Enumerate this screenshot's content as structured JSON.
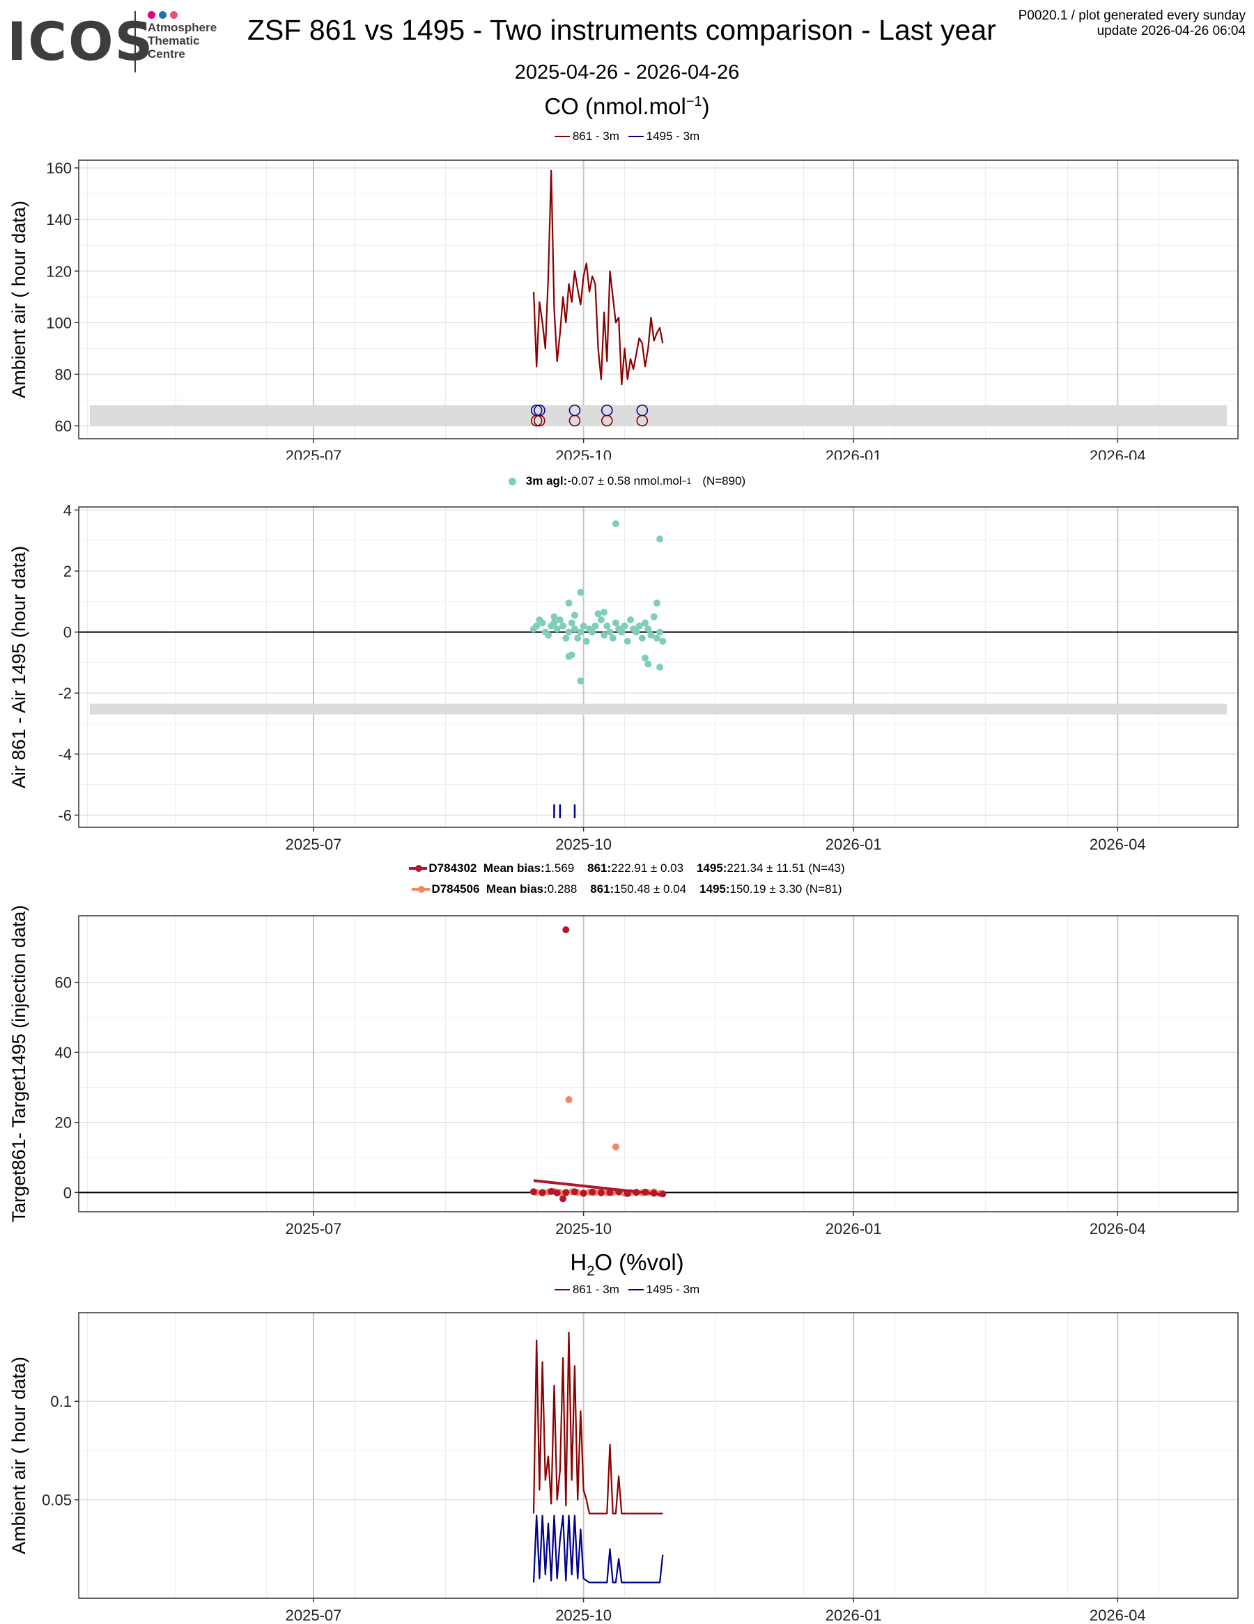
{
  "header": {
    "logo_text": "ICOS",
    "logo_sub": [
      "Atmosphere",
      "Thematic",
      "Centre"
    ],
    "logo_dot_colors": [
      "#e6007e",
      "#1d71b8",
      "#e94f7c"
    ],
    "title": "ZSF 861 vs 1495 - Two instruments comparison - Last year",
    "corner_line1": "P0020.1 / plot generated every sunday",
    "corner_line2": "update  2026-04-26 06:04",
    "date_range": "2025-04-26 - 2026-04-26"
  },
  "sections": {
    "co_title": "CO (nmol.mol",
    "co_title_sup": "−1",
    "co_title_end": ")",
    "h2o_title_a": "H",
    "h2o_title_sub": "2",
    "h2o_title_b": "O (%vol)"
  },
  "legends": {
    "co_series": [
      {
        "label": "861 - 3m",
        "color": "#8b0000"
      },
      {
        "label": "1495 - 3m",
        "color": "#00008b"
      }
    ],
    "diff": {
      "bold": "3m agl:",
      "text": " -0.07 ± 0.58 nmol.mol",
      "sup": "−1",
      "n": "(N=890)",
      "color": "#7fcdbb"
    },
    "targets": [
      {
        "name": "D784302",
        "mb_label": "Mean bias:",
        "mb": " 1.569",
        "a_label": "861:",
        "a": " 222.91 ± 0.03",
        "b_label": "1495:",
        "b": " 221.34 ± 11.51 (N=43)",
        "color": "#b2182b"
      },
      {
        "name": "D784506",
        "mb_label": "Mean bias:",
        "mb": " 0.288",
        "a_label": "861:",
        "a": " 150.48 ± 0.04",
        "b_label": "1495:",
        "b": " 150.19 ± 3.30 (N=81)",
        "color": "#ef8a62"
      }
    ],
    "h2o_series": [
      {
        "label": "861 - 3m",
        "color": "#8b0000"
      },
      {
        "label": "1495 - 3m",
        "color": "#00008b"
      }
    ]
  },
  "x_axis": {
    "domain": [
      "2025-04-12",
      "2026-05-12"
    ],
    "ticks": [
      "2025-07",
      "2025-10",
      "2026-01",
      "2026-04"
    ],
    "tick_dates": [
      "2025-07-01",
      "2025-10-01",
      "2026-01-01",
      "2026-04-01"
    ]
  },
  "chart_data": [
    {
      "type": "line",
      "title": "CO (nmol.mol−1)",
      "ylabel": "Ambient air ( hour data)",
      "ylim": [
        55,
        163
      ],
      "yticks": [
        60,
        80,
        100,
        120,
        140,
        160
      ],
      "band": [
        60,
        68
      ],
      "series": [
        {
          "name": "861 - 3m",
          "color": "#8b0000",
          "x": [
            "2025-09-14",
            "2025-09-15",
            "2025-09-16",
            "2025-09-17",
            "2025-09-18",
            "2025-09-19",
            "2025-09-20",
            "2025-09-21",
            "2025-09-22",
            "2025-09-23",
            "2025-09-24",
            "2025-09-25",
            "2025-09-26",
            "2025-09-27",
            "2025-09-28",
            "2025-09-29",
            "2025-09-30",
            "2025-10-01",
            "2025-10-02",
            "2025-10-03",
            "2025-10-04",
            "2025-10-05",
            "2025-10-06",
            "2025-10-07",
            "2025-10-08",
            "2025-10-09",
            "2025-10-10",
            "2025-10-11",
            "2025-10-12",
            "2025-10-13",
            "2025-10-14",
            "2025-10-15",
            "2025-10-16",
            "2025-10-17",
            "2025-10-18",
            "2025-10-19",
            "2025-10-20",
            "2025-10-21",
            "2025-10-22",
            "2025-10-23",
            "2025-10-24",
            "2025-10-25",
            "2025-10-26",
            "2025-10-27",
            "2025-10-28"
          ],
          "values": [
            112,
            83,
            108,
            100,
            90,
            118,
            159,
            105,
            85,
            96,
            110,
            100,
            115,
            108,
            120,
            113,
            107,
            118,
            123,
            112,
            118,
            115,
            90,
            78,
            104,
            85,
            120,
            110,
            100,
            102,
            76,
            90,
            78,
            86,
            82,
            88,
            94,
            92,
            83,
            90,
            102,
            93,
            96,
            98,
            92
          ]
        },
        {
          "name": "1495 - 3m",
          "color": "#00008b",
          "values": []
        }
      ],
      "markers": {
        "861": {
          "color": "#8b0000",
          "y": 62,
          "x": [
            "2025-09-15",
            "2025-09-16",
            "2025-09-28",
            "2025-10-09",
            "2025-10-21"
          ]
        },
        "1495": {
          "color": "#00008b",
          "y": 66,
          "x": [
            "2025-09-15",
            "2025-09-16",
            "2025-09-28",
            "2025-10-09",
            "2025-10-21"
          ]
        }
      }
    },
    {
      "type": "scatter",
      "ylabel": "Air 861 - Air 1495 (hour data)",
      "ylim": [
        -6.4,
        4.1
      ],
      "yticks": [
        -6,
        -4,
        -2,
        0,
        2,
        4
      ],
      "band": [
        -2.7,
        -2.35
      ],
      "series": [
        {
          "name": "3m agl",
          "color": "#7fcdbb",
          "x": [
            "2025-09-14",
            "2025-09-15",
            "2025-09-16",
            "2025-09-17",
            "2025-09-18",
            "2025-09-19",
            "2025-09-20",
            "2025-09-21",
            "2025-09-22",
            "2025-09-23",
            "2025-09-24",
            "2025-09-25",
            "2025-09-26",
            "2025-09-27",
            "2025-09-28",
            "2025-09-29",
            "2025-09-30",
            "2025-10-01",
            "2025-10-02",
            "2025-10-03",
            "2025-10-04",
            "2025-10-05",
            "2025-10-06",
            "2025-10-07",
            "2025-10-08",
            "2025-10-09",
            "2025-10-10",
            "2025-10-11",
            "2025-10-12",
            "2025-10-13",
            "2025-10-14",
            "2025-10-15",
            "2025-10-16",
            "2025-10-17",
            "2025-10-18",
            "2025-10-19",
            "2025-10-20",
            "2025-10-21",
            "2025-10-22",
            "2025-10-23",
            "2025-10-24",
            "2025-10-25",
            "2025-10-26",
            "2025-10-27",
            "2025-10-28",
            "2025-10-12",
            "2025-10-27",
            "2025-09-30",
            "2025-09-26",
            "2025-09-28",
            "2025-09-27",
            "2025-09-30",
            "2025-09-26",
            "2025-10-27",
            "2025-10-22",
            "2025-10-23",
            "2025-10-08",
            "2025-10-26",
            "2025-09-21",
            "2025-09-24"
          ],
          "values": [
            0.1,
            0.2,
            0.4,
            0.3,
            0.0,
            -0.1,
            0.2,
            0.3,
            0.1,
            0.4,
            0.2,
            -0.2,
            0.0,
            0.3,
            0.1,
            -0.2,
            0.0,
            0.2,
            -0.3,
            0.1,
            0.0,
            0.2,
            0.6,
            0.4,
            -0.1,
            0.2,
            0.0,
            -0.2,
            0.3,
            0.1,
            0.0,
            0.2,
            -0.3,
            0.4,
            0.1,
            0.0,
            0.2,
            -0.2,
            0.3,
            0.1,
            -0.1,
            0.5,
            -0.2,
            0.0,
            -0.3,
            3.55,
            3.05,
            1.3,
            0.95,
            0.55,
            -0.75,
            -1.6,
            -0.8,
            -1.15,
            -0.85,
            -1.05,
            0.65,
            0.95,
            0.5,
            0.2
          ]
        }
      ],
      "flags": {
        "color": "#00008b",
        "x": [
          "2025-09-21",
          "2025-09-23",
          "2025-09-28"
        ]
      }
    },
    {
      "type": "scatter",
      "ylabel": "Target861- Target1495 (injection data)",
      "ylim": [
        -5.5,
        79
      ],
      "yticks": [
        0,
        20,
        40,
        60
      ],
      "series": [
        {
          "name": "D784302",
          "color": "#b2182b",
          "x": [
            "2025-09-14",
            "2025-09-17",
            "2025-09-20",
            "2025-09-22",
            "2025-09-25",
            "2025-09-28",
            "2025-10-01",
            "2025-10-04",
            "2025-10-07",
            "2025-10-10",
            "2025-10-13",
            "2025-10-16",
            "2025-10-19",
            "2025-10-22",
            "2025-10-25",
            "2025-10-28",
            "2025-09-25",
            "2025-09-24"
          ],
          "values": [
            0.2,
            0.0,
            0.3,
            -0.1,
            0.0,
            0.2,
            -0.2,
            0.1,
            -0.1,
            0.0,
            0.2,
            -0.3,
            0.0,
            0.1,
            -0.2,
            -0.4,
            75.0,
            -1.8
          ],
          "trend": {
            "x": [
              "2025-09-14",
              "2025-10-28"
            ],
            "y": [
              3.4,
              -0.6
            ]
          }
        },
        {
          "name": "D784506",
          "color": "#ef8a62",
          "x": [
            "2025-09-15",
            "2025-09-17",
            "2025-09-19",
            "2025-09-21",
            "2025-09-23",
            "2025-09-25",
            "2025-09-27",
            "2025-09-29",
            "2025-10-01",
            "2025-10-03",
            "2025-10-05",
            "2025-10-07",
            "2025-10-09",
            "2025-10-11",
            "2025-10-13",
            "2025-10-15",
            "2025-10-17",
            "2025-10-19",
            "2025-10-21",
            "2025-10-23",
            "2025-10-25",
            "2025-10-27",
            "2025-09-26",
            "2025-10-12"
          ],
          "values": [
            0.0,
            -0.2,
            0.1,
            0.3,
            0.0,
            -0.1,
            0.2,
            0.0,
            -0.3,
            0.1,
            0.0,
            0.2,
            -0.1,
            0.0,
            0.1,
            -0.2,
            0.0,
            0.1,
            -0.1,
            0.0,
            0.2,
            -0.3,
            26.5,
            13.0
          ]
        }
      ]
    },
    {
      "type": "line",
      "title": "H2O (%vol)",
      "ylabel": "Ambient air ( hour data)",
      "ylim": [
        0.0,
        0.145
      ],
      "yticks": [
        0.05,
        0.1
      ],
      "series": [
        {
          "name": "861 - 3m",
          "color": "#8b0000",
          "x": [
            "2025-09-14",
            "2025-09-15",
            "2025-09-16",
            "2025-09-17",
            "2025-09-18",
            "2025-09-19",
            "2025-09-20",
            "2025-09-21",
            "2025-09-22",
            "2025-09-23",
            "2025-09-24",
            "2025-09-25",
            "2025-09-26",
            "2025-09-27",
            "2025-09-28",
            "2025-09-29",
            "2025-09-30",
            "2025-10-01",
            "2025-10-02",
            "2025-10-03",
            "2025-10-04",
            "2025-10-05",
            "2025-10-06",
            "2025-10-07",
            "2025-10-08",
            "2025-10-09",
            "2025-10-10",
            "2025-10-11",
            "2025-10-12",
            "2025-10-13",
            "2025-10-14",
            "2025-10-15",
            "2025-10-16",
            "2025-10-17",
            "2025-10-18",
            "2025-10-19",
            "2025-10-20",
            "2025-10-21",
            "2025-10-22",
            "2025-10-23",
            "2025-10-24",
            "2025-10-25",
            "2025-10-26",
            "2025-10-27",
            "2025-10-28"
          ],
          "values": [
            0.043,
            0.131,
            0.055,
            0.12,
            0.06,
            0.072,
            0.048,
            0.108,
            0.05,
            0.065,
            0.122,
            0.047,
            0.135,
            0.06,
            0.118,
            0.05,
            0.095,
            0.055,
            0.05,
            0.043,
            0.043,
            0.043,
            0.043,
            0.043,
            0.043,
            0.043,
            0.078,
            0.043,
            0.043,
            0.062,
            0.043,
            0.043,
            0.043,
            0.043,
            0.043,
            0.043,
            0.043,
            0.043,
            0.043,
            0.043,
            0.043,
            0.043,
            0.043,
            0.043,
            0.043
          ]
        },
        {
          "name": "1495 - 3m",
          "color": "#00008b",
          "x": [
            "2025-09-14",
            "2025-09-15",
            "2025-09-16",
            "2025-09-17",
            "2025-09-18",
            "2025-09-19",
            "2025-09-20",
            "2025-09-21",
            "2025-09-22",
            "2025-09-23",
            "2025-09-24",
            "2025-09-25",
            "2025-09-26",
            "2025-09-27",
            "2025-09-28",
            "2025-09-29",
            "2025-09-30",
            "2025-10-01",
            "2025-10-02",
            "2025-10-03",
            "2025-10-04",
            "2025-10-05",
            "2025-10-06",
            "2025-10-07",
            "2025-10-08",
            "2025-10-09",
            "2025-10-10",
            "2025-10-11",
            "2025-10-12",
            "2025-10-13",
            "2025-10-14",
            "2025-10-15",
            "2025-10-16",
            "2025-10-17",
            "2025-10-18",
            "2025-10-19",
            "2025-10-20",
            "2025-10-21",
            "2025-10-22",
            "2025-10-23",
            "2025-10-24",
            "2025-10-25",
            "2025-10-26",
            "2025-10-27",
            "2025-10-28"
          ],
          "values": [
            0.008,
            0.042,
            0.01,
            0.042,
            0.012,
            0.038,
            0.009,
            0.042,
            0.01,
            0.03,
            0.042,
            0.009,
            0.042,
            0.012,
            0.042,
            0.01,
            0.035,
            0.01,
            0.009,
            0.008,
            0.008,
            0.008,
            0.008,
            0.008,
            0.008,
            0.008,
            0.025,
            0.008,
            0.008,
            0.02,
            0.008,
            0.008,
            0.008,
            0.008,
            0.008,
            0.008,
            0.008,
            0.008,
            0.008,
            0.008,
            0.008,
            0.008,
            0.008,
            0.008,
            0.022
          ]
        }
      ]
    }
  ]
}
